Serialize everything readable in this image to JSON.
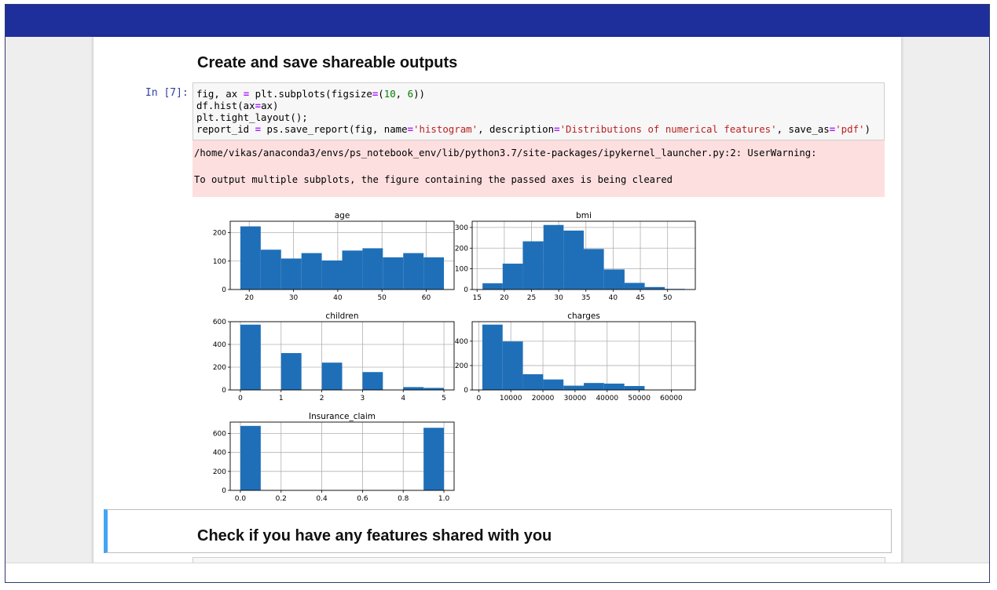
{
  "section1": {
    "title": "Create and save shareable outputs"
  },
  "cell": {
    "prompt": "In [7]:",
    "code": {
      "l1_a": "fig, ax ",
      "l1_op": "=",
      "l1_b": " plt.subplots(figsize",
      "l1_op2": "=",
      "l1_c": "(",
      "l1_n1": "10",
      "l1_d": ", ",
      "l1_n2": "6",
      "l1_e": "))",
      "l2_a": "df.hist(ax",
      "l2_op": "=",
      "l2_b": "ax)",
      "l3": "plt.tight_layout();",
      "l4_a": "report_id ",
      "l4_op": "=",
      "l4_b": " ps.save_report(fig, name",
      "l4_op2": "=",
      "l4_s1": "'histogram'",
      "l4_c": ", description",
      "l4_op3": "=",
      "l4_s2": "'Distributions of numerical features'",
      "l4_d": ", save_as",
      "l4_op4": "=",
      "l4_s3": "'pdf'",
      "l4_e": ")"
    },
    "warning_line1": "/home/vikas/anaconda3/envs/ps_notebook_env/lib/python3.7/site-packages/ipykernel_launcher.py:2: UserWarning:",
    "warning_line2": "To output multiple subplots, the figure containing the passed axes is being cleared"
  },
  "section2": {
    "title": "Check if you have any features shared with you"
  },
  "colors": {
    "bar": "#1f6fb8",
    "topbar": "#1e2f9c",
    "warning_bg": "#fddfdf",
    "md_accent": "#42a5f5",
    "prompt": "#303f9f"
  },
  "chart_data": [
    {
      "type": "bar",
      "title": "age",
      "bins": [
        [
          18,
          22.6
        ],
        [
          22.6,
          27.2
        ],
        [
          27.2,
          31.8
        ],
        [
          31.8,
          36.4
        ],
        [
          36.4,
          41
        ],
        [
          41,
          45.6
        ],
        [
          45.6,
          50.2
        ],
        [
          50.2,
          54.8
        ],
        [
          54.8,
          59.4
        ],
        [
          59.4,
          64
        ]
      ],
      "values": [
        222,
        140,
        109,
        128,
        102,
        137,
        145,
        113,
        128,
        113
      ],
      "xlim": [
        15.7,
        66.3
      ],
      "ylim": [
        0,
        240
      ],
      "xticks": [
        20,
        30,
        40,
        50,
        60
      ],
      "yticks": [
        0,
        100,
        200
      ],
      "grid": true
    },
    {
      "type": "bar",
      "title": "bmi",
      "bins": [
        [
          16,
          19.7
        ],
        [
          19.7,
          23.4
        ],
        [
          23.4,
          27.2
        ],
        [
          27.2,
          30.9
        ],
        [
          30.9,
          34.6
        ],
        [
          34.6,
          38.3
        ],
        [
          38.3,
          42.1
        ],
        [
          42.1,
          45.8
        ],
        [
          45.8,
          49.5
        ],
        [
          49.5,
          53.2
        ]
      ],
      "values": [
        30,
        125,
        233,
        312,
        285,
        196,
        97,
        32,
        12,
        3
      ],
      "xlim": [
        14.1,
        55.1
      ],
      "ylim": [
        0,
        330
      ],
      "xticks": [
        15,
        20,
        25,
        30,
        35,
        40,
        45,
        50
      ],
      "yticks": [
        0,
        100,
        200,
        300
      ],
      "grid": true
    },
    {
      "type": "bar",
      "title": "children",
      "bins": [
        [
          0,
          0.5
        ],
        [
          1,
          1.5
        ],
        [
          2,
          2.5
        ],
        [
          3,
          3.5
        ],
        [
          4,
          4.5
        ],
        [
          4.5,
          5
        ]
      ],
      "values": [
        574,
        324,
        240,
        157,
        25,
        18
      ],
      "xlim": [
        -0.25,
        5.25
      ],
      "ylim": [
        0,
        600
      ],
      "xticks": [
        0,
        1,
        2,
        3,
        4,
        5
      ],
      "yticks": [
        0,
        200,
        400,
        600
      ],
      "grid": true
    },
    {
      "type": "bar",
      "title": "charges",
      "bins": [
        [
          1122,
          7441
        ],
        [
          7441,
          13760
        ],
        [
          13760,
          20079
        ],
        [
          20079,
          26398
        ],
        [
          26398,
          32717
        ],
        [
          32717,
          39036
        ],
        [
          39036,
          45355
        ],
        [
          45355,
          51674
        ],
        [
          51674,
          57993
        ],
        [
          57993,
          64312
        ]
      ],
      "values": [
        536,
        398,
        129,
        86,
        35,
        57,
        52,
        32,
        0,
        3
      ],
      "xlim": [
        -2040,
        67470
      ],
      "ylim": [
        0,
        560
      ],
      "xticks": [
        0,
        10000,
        20000,
        30000,
        40000,
        50000,
        60000
      ],
      "yticks": [
        0,
        200,
        400
      ],
      "grid": true
    },
    {
      "type": "bar",
      "title": "Insurance_claim",
      "bins": [
        [
          0,
          0.1
        ],
        [
          0.9,
          1
        ]
      ],
      "values": [
        680,
        660
      ],
      "xlim": [
        -0.05,
        1.05
      ],
      "ylim": [
        0,
        720
      ],
      "xticks": [
        "0.0",
        "0.2",
        "0.4",
        "0.6",
        "0.8",
        "1.0"
      ],
      "yticks": [
        0,
        200,
        400,
        600
      ],
      "grid": true
    }
  ]
}
